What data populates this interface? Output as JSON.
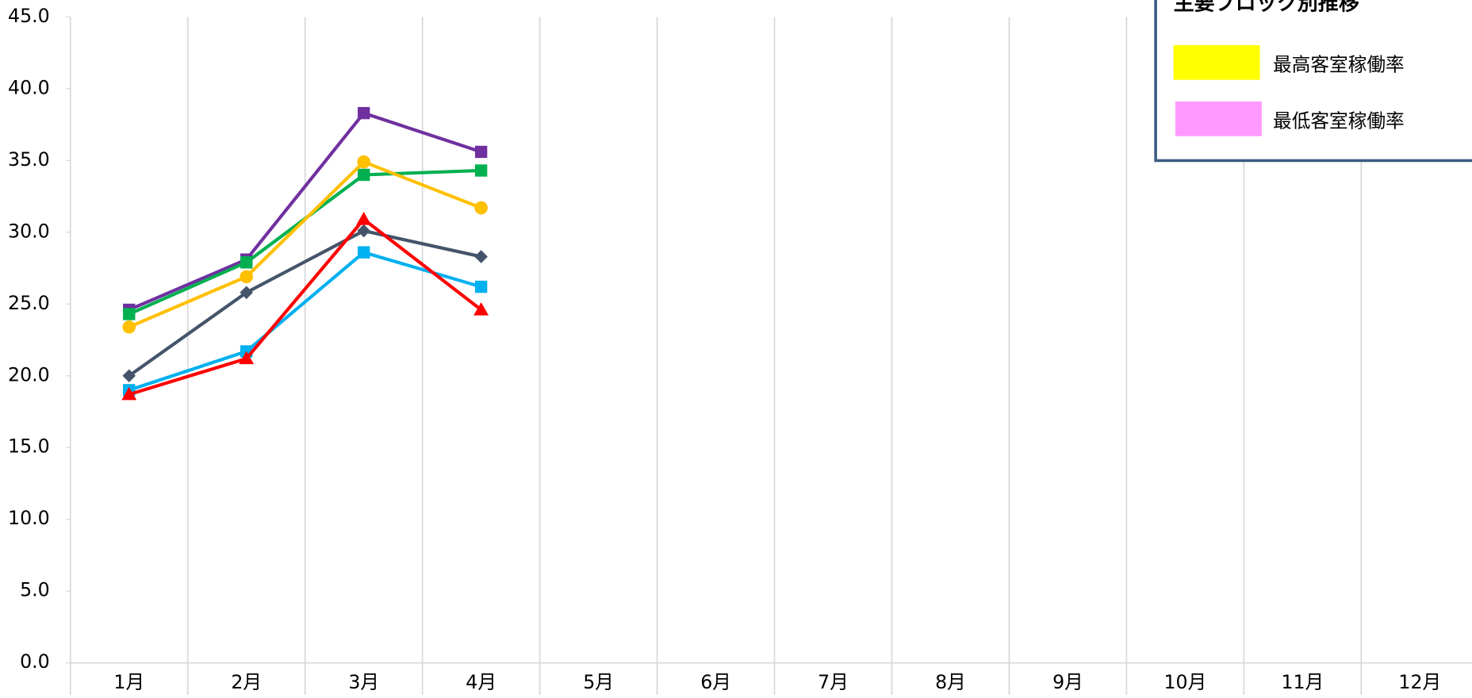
{
  "chart_data": {
    "type": "line",
    "categories": [
      "1月",
      "2月",
      "3月",
      "4月",
      "5月",
      "6月",
      "7月",
      "8月",
      "9月",
      "10月",
      "11月",
      "12月"
    ],
    "series": [
      {
        "color": "#7030a0",
        "marker": "square",
        "values": [
          24.6,
          28.1,
          38.3,
          35.6,
          null,
          null,
          null,
          null,
          null,
          null,
          null,
          null
        ]
      },
      {
        "color": "#00b050",
        "marker": "square",
        "values": [
          24.3,
          27.9,
          34.0,
          34.3,
          null,
          null,
          null,
          null,
          null,
          null,
          null,
          null
        ]
      },
      {
        "color": "#ffc000",
        "marker": "circle",
        "values": [
          23.4,
          26.9,
          34.9,
          31.7,
          null,
          null,
          null,
          null,
          null,
          null,
          null,
          null
        ]
      },
      {
        "color": "#44546a",
        "marker": "diamond",
        "values": [
          20.0,
          25.8,
          30.1,
          28.3,
          null,
          null,
          null,
          null,
          null,
          null,
          null,
          null
        ]
      },
      {
        "color": "#00b0f0",
        "marker": "square",
        "values": [
          19.0,
          21.7,
          28.6,
          26.2,
          null,
          null,
          null,
          null,
          null,
          null,
          null,
          null
        ]
      },
      {
        "color": "#ff0000",
        "marker": "triangle",
        "values": [
          18.7,
          21.2,
          30.9,
          24.6,
          null,
          null,
          null,
          null,
          null,
          null,
          null,
          null
        ]
      }
    ],
    "ylim": [
      0,
      45
    ],
    "yticks": [
      {
        "value": 0,
        "label": "0.0"
      },
      {
        "value": 5,
        "label": "5.0"
      },
      {
        "value": 10,
        "label": "10.0"
      },
      {
        "value": 15,
        "label": "15.0"
      },
      {
        "value": 20,
        "label": "20.0"
      },
      {
        "value": 25,
        "label": "25.0"
      },
      {
        "value": 30,
        "label": "30.0"
      },
      {
        "value": 35,
        "label": "35.0"
      },
      {
        "value": 40,
        "label": "40.0"
      },
      {
        "value": 45,
        "label": "45.0"
      }
    ],
    "legend_box": {
      "title": "主要ブロック別推移",
      "items": [
        {
          "label": "最高客室稼働率",
          "color": "#ffff00"
        },
        {
          "label": "最低客室稼働率",
          "color": "#ff99ff"
        }
      ]
    }
  }
}
